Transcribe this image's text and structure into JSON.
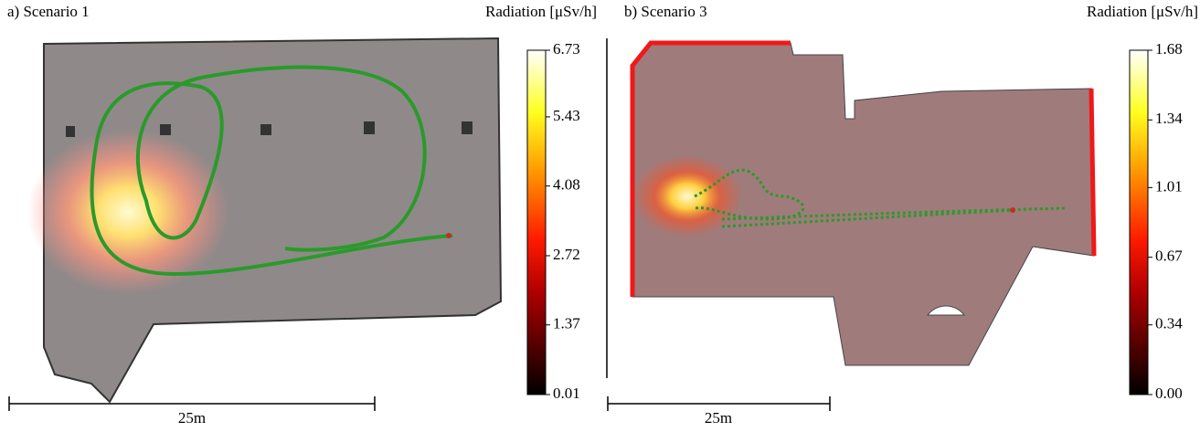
{
  "chart_data": [
    {
      "type": "map",
      "title": "a) Scenario 1",
      "colorbar_label": "Radiation [μSv/h]",
      "scale_label": "25m",
      "clim": [
        0.01,
        6.73
      ],
      "cticks": [
        0.01,
        1.37,
        2.72,
        4.08,
        5.43,
        6.73
      ]
    },
    {
      "type": "map",
      "title": "b) Scenario 3",
      "colorbar_label": "Radiation [μSv/h]",
      "scale_label": "25m",
      "clim": [
        0,
        1.68
      ],
      "cticks": [
        {
          "value": 0,
          "label": "0.00"
        },
        0.34,
        0.67,
        1.01,
        1.34,
        1.68
      ]
    }
  ]
}
